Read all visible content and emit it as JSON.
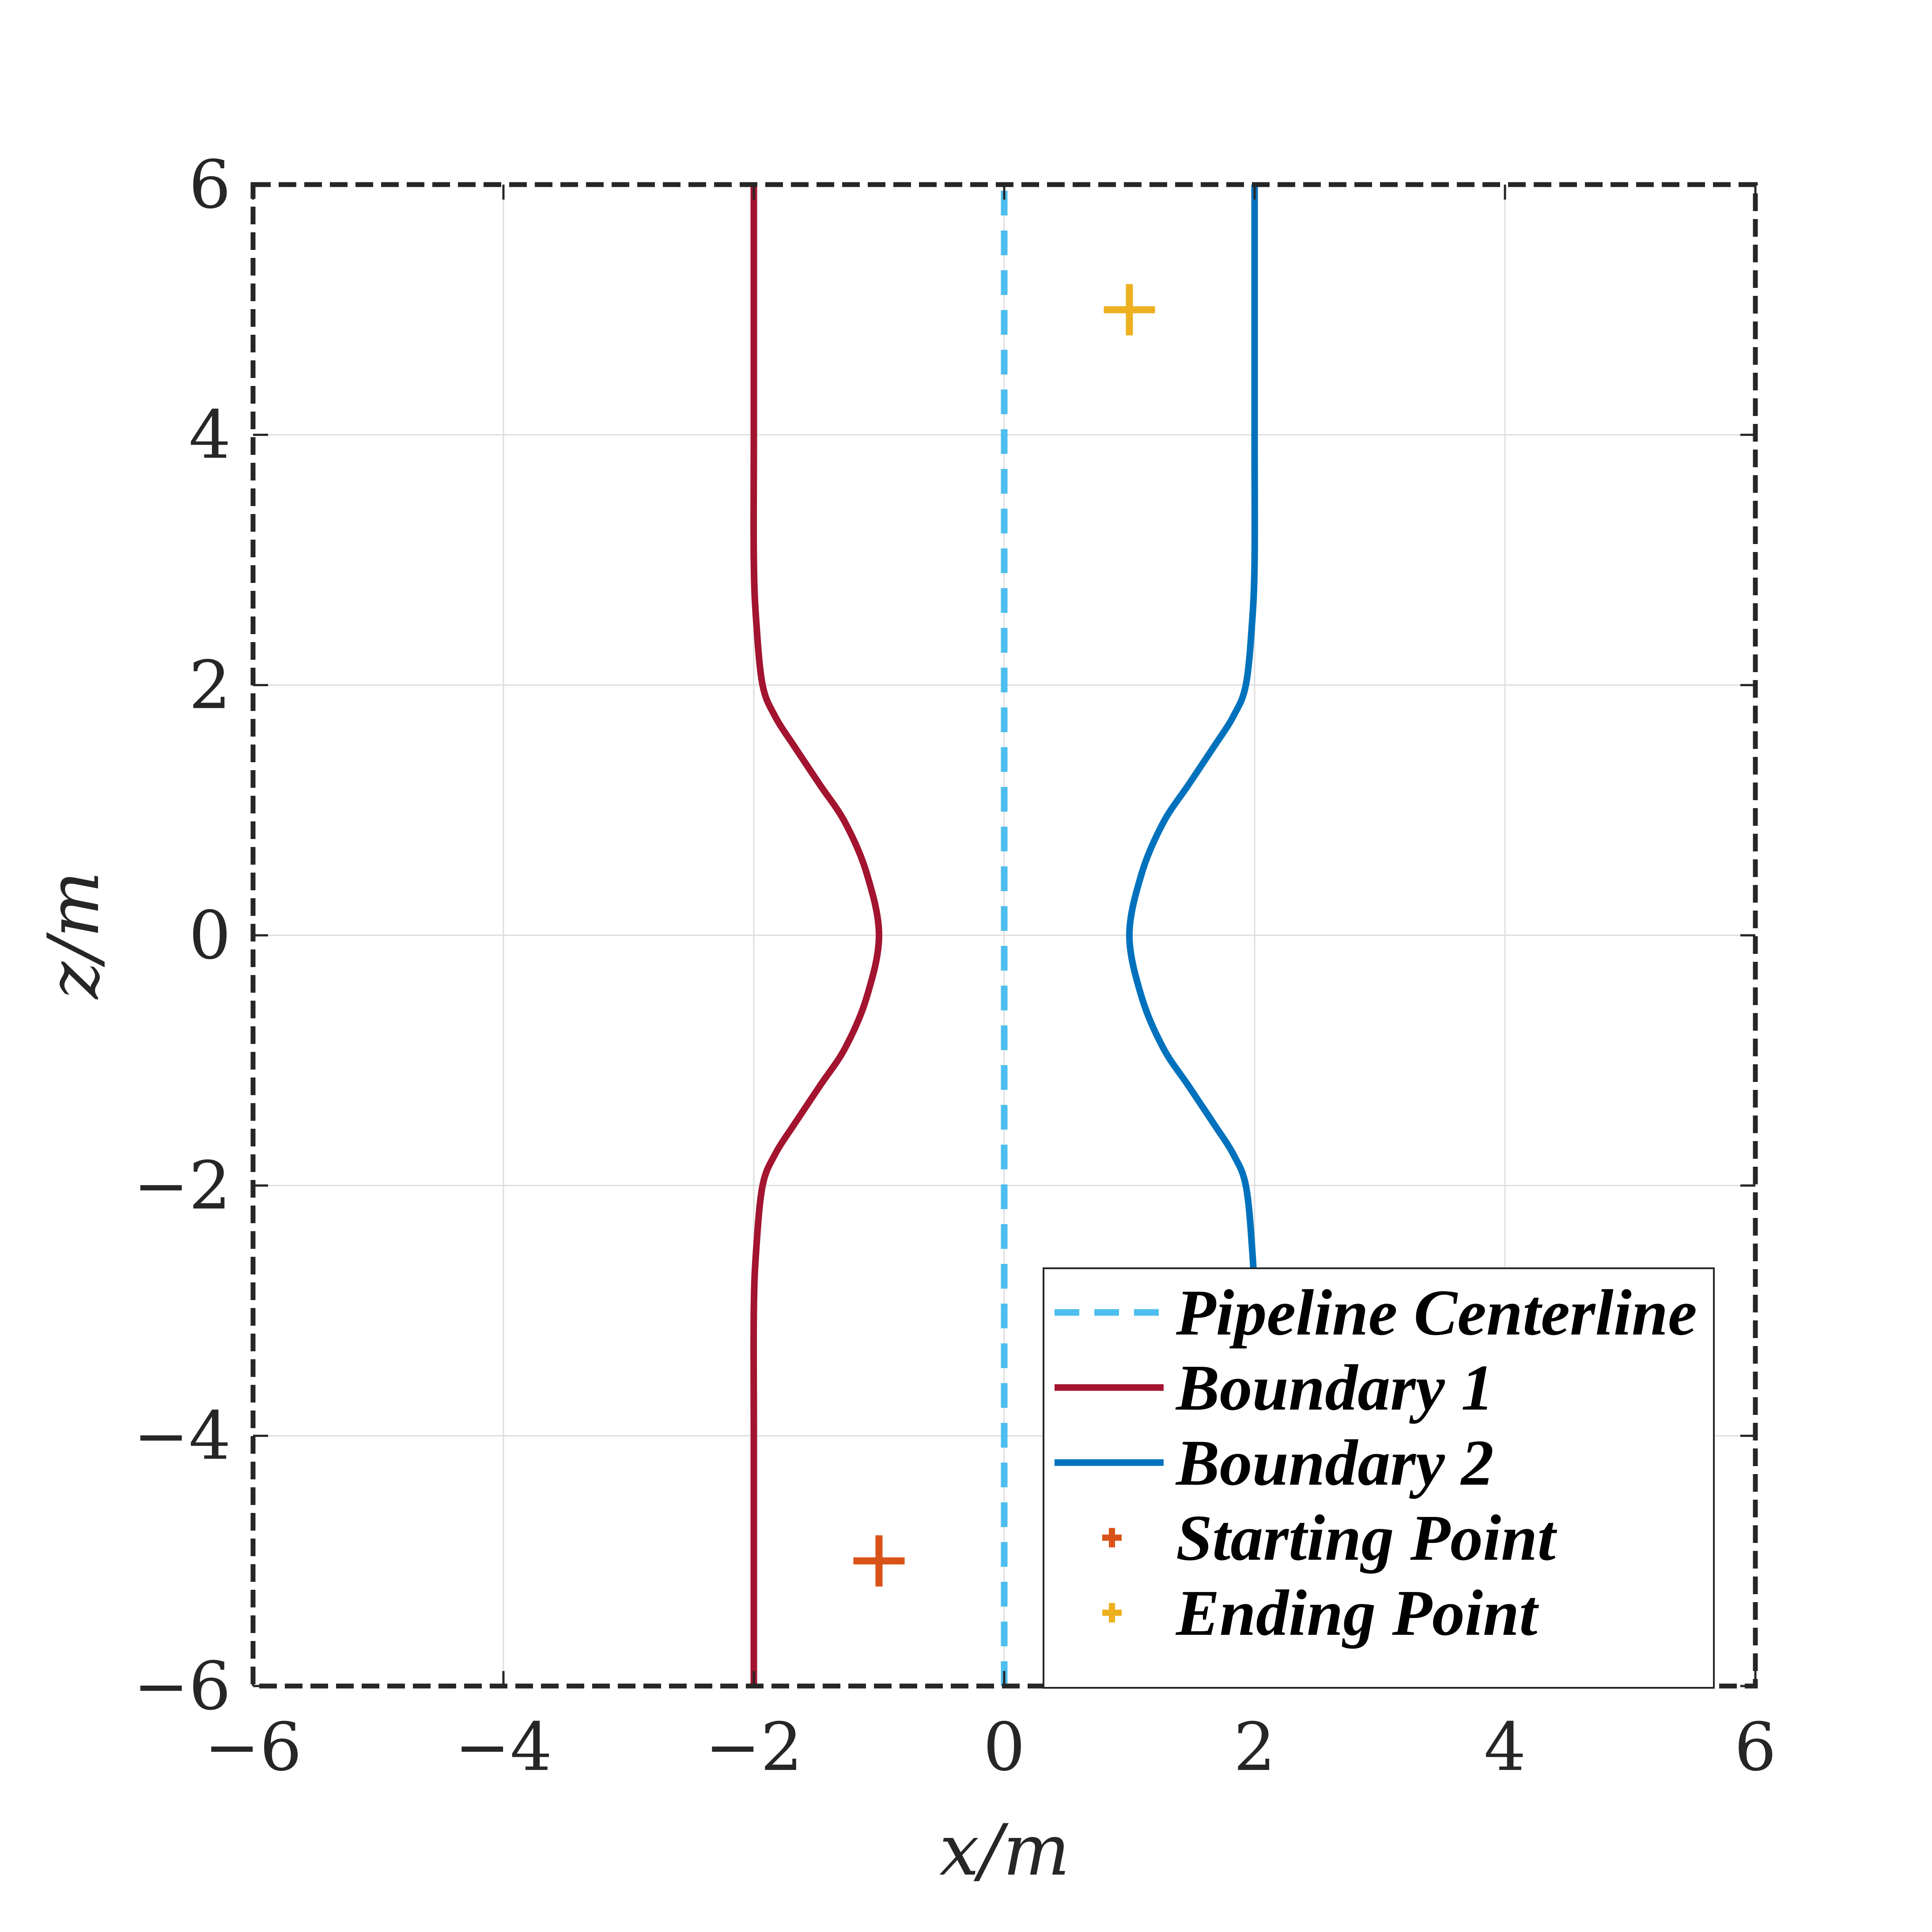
{
  "chart_data": {
    "type": "line",
    "title": "",
    "xlabel": "x/m",
    "ylabel": "z/m",
    "xlim": [
      -6,
      6
    ],
    "ylim": [
      -6,
      6
    ],
    "xticks": [
      -6,
      -4,
      -2,
      0,
      2,
      4,
      6
    ],
    "yticks": [
      -6,
      -4,
      -2,
      0,
      2,
      4,
      6
    ],
    "xtick_labels": [
      "−6",
      "−4",
      "−2",
      "0",
      "2",
      "4",
      "6"
    ],
    "ytick_labels": [
      "−6",
      "−4",
      "−2",
      "0",
      "2",
      "4",
      "6"
    ],
    "grid": true,
    "legend_position": "bottom-right",
    "series": [
      {
        "name": "Pipeline Centerline",
        "style": "dashed",
        "color": "#4DBEEE",
        "x": [
          0,
          0
        ],
        "y": [
          -6,
          6
        ]
      },
      {
        "name": "Boundary 1",
        "style": "solid",
        "color": "#A2142F",
        "x": [
          -2.0,
          -2.0,
          -2.0,
          -1.98,
          -1.93,
          -1.83,
          -1.67,
          -1.47,
          -1.27,
          -1.1,
          -1.0,
          -1.1,
          -1.27,
          -1.47,
          -1.67,
          -1.83,
          -1.93,
          -1.98,
          -2.0,
          -2.0,
          -2.0
        ],
        "y": [
          -6.0,
          -4.0,
          -3.0,
          -2.5,
          -2.0,
          -1.75,
          -1.5,
          -1.2,
          -0.9,
          -0.5,
          0.0,
          0.5,
          0.9,
          1.2,
          1.5,
          1.75,
          2.0,
          2.5,
          3.0,
          4.0,
          6.0
        ]
      },
      {
        "name": "Boundary 2",
        "style": "solid",
        "color": "#0072BD",
        "x": [
          2.0,
          2.0,
          2.0,
          1.98,
          1.93,
          1.83,
          1.67,
          1.47,
          1.27,
          1.1,
          1.0,
          1.1,
          1.27,
          1.47,
          1.67,
          1.83,
          1.93,
          1.98,
          2.0,
          2.0,
          2.0
        ],
        "y": [
          -6.0,
          -4.0,
          -3.0,
          -2.5,
          -2.0,
          -1.75,
          -1.5,
          -1.2,
          -0.9,
          -0.5,
          0.0,
          0.5,
          0.9,
          1.2,
          1.5,
          1.75,
          2.0,
          2.5,
          3.0,
          4.0,
          6.0
        ]
      },
      {
        "name": "Starting Point",
        "style": "marker-plus",
        "color": "#D95319",
        "x": [
          -1
        ],
        "y": [
          -5
        ]
      },
      {
        "name": "Ending Point",
        "style": "marker-plus",
        "color": "#EDB120",
        "x": [
          1
        ],
        "y": [
          5
        ]
      }
    ]
  }
}
